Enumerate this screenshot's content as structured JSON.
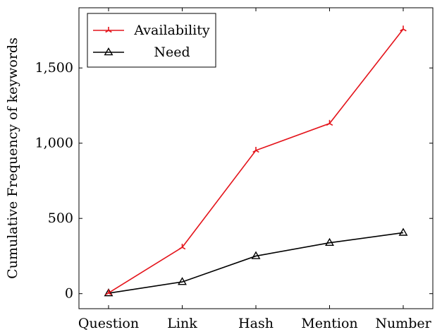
{
  "chart_data": {
    "type": "line",
    "categories": [
      "Question",
      "Link",
      "Hash",
      "Mention",
      "Number"
    ],
    "series": [
      {
        "name": "Availability",
        "values": [
          5,
          308,
          952,
          1131,
          1758
        ],
        "color": "#e4141b",
        "marker": "tri-star"
      },
      {
        "name": "Need",
        "values": [
          3,
          78,
          250,
          338,
          405
        ],
        "color": "#000000",
        "marker": "triangle"
      }
    ],
    "title": "",
    "xlabel": "",
    "ylabel": "Cumulative Frequency of keywords",
    "ylim": [
      -100,
      1900
    ],
    "yticks": [
      0,
      500,
      1000,
      1500
    ],
    "ytick_labels": [
      "0",
      "500",
      "1,000",
      "1,500"
    ],
    "grid": false,
    "legend_position": "top-left"
  }
}
